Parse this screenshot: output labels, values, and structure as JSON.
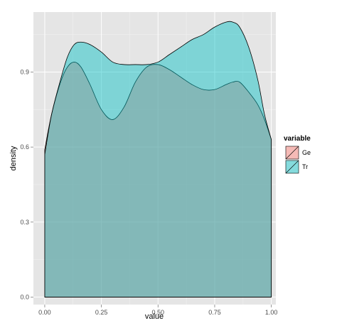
{
  "chart_data": {
    "type": "area",
    "title": "",
    "xlabel": "value",
    "ylabel": "density",
    "xlim": [
      -0.05,
      1.02
    ],
    "ylim": [
      -0.03,
      1.14
    ],
    "x_ticks": [
      0.0,
      0.25,
      0.5,
      0.75,
      1.0
    ],
    "x_tick_labels": [
      "0.00",
      "0.25",
      "0.50",
      "0.75",
      "1.00"
    ],
    "y_ticks": [
      0.0,
      0.3,
      0.6,
      0.9
    ],
    "y_tick_labels": [
      "0.0",
      "0.3",
      "0.6",
      "0.9"
    ],
    "grid": true,
    "legend": {
      "title": "variable",
      "position": "right"
    },
    "series": [
      {
        "name": "Ge",
        "color": "#f8766d",
        "fill_opacity": 0.45,
        "x": [
          0.0,
          0.03,
          0.07,
          0.1,
          0.13,
          0.16,
          0.2,
          0.25,
          0.3,
          0.35,
          0.4,
          0.45,
          0.5,
          0.55,
          0.6,
          0.65,
          0.7,
          0.75,
          0.8,
          0.83,
          0.86,
          0.9,
          0.94,
          0.97,
          1.0
        ],
        "values": [
          0.59,
          0.73,
          0.86,
          0.92,
          0.94,
          0.92,
          0.85,
          0.75,
          0.71,
          0.76,
          0.86,
          0.92,
          0.93,
          0.91,
          0.88,
          0.85,
          0.83,
          0.83,
          0.85,
          0.86,
          0.86,
          0.82,
          0.77,
          0.71,
          0.63
        ]
      },
      {
        "name": "Tr",
        "color": "#00bfc4",
        "fill_opacity": 0.45,
        "x": [
          0.0,
          0.03,
          0.07,
          0.1,
          0.13,
          0.16,
          0.2,
          0.25,
          0.3,
          0.35,
          0.4,
          0.45,
          0.5,
          0.55,
          0.6,
          0.65,
          0.7,
          0.75,
          0.8,
          0.83,
          0.86,
          0.9,
          0.94,
          0.97,
          1.0
        ],
        "values": [
          0.57,
          0.73,
          0.87,
          0.96,
          1.01,
          1.02,
          1.01,
          0.98,
          0.94,
          0.93,
          0.93,
          0.93,
          0.94,
          0.97,
          1.0,
          1.03,
          1.05,
          1.08,
          1.1,
          1.1,
          1.08,
          1.0,
          0.87,
          0.73,
          0.63
        ]
      }
    ]
  }
}
